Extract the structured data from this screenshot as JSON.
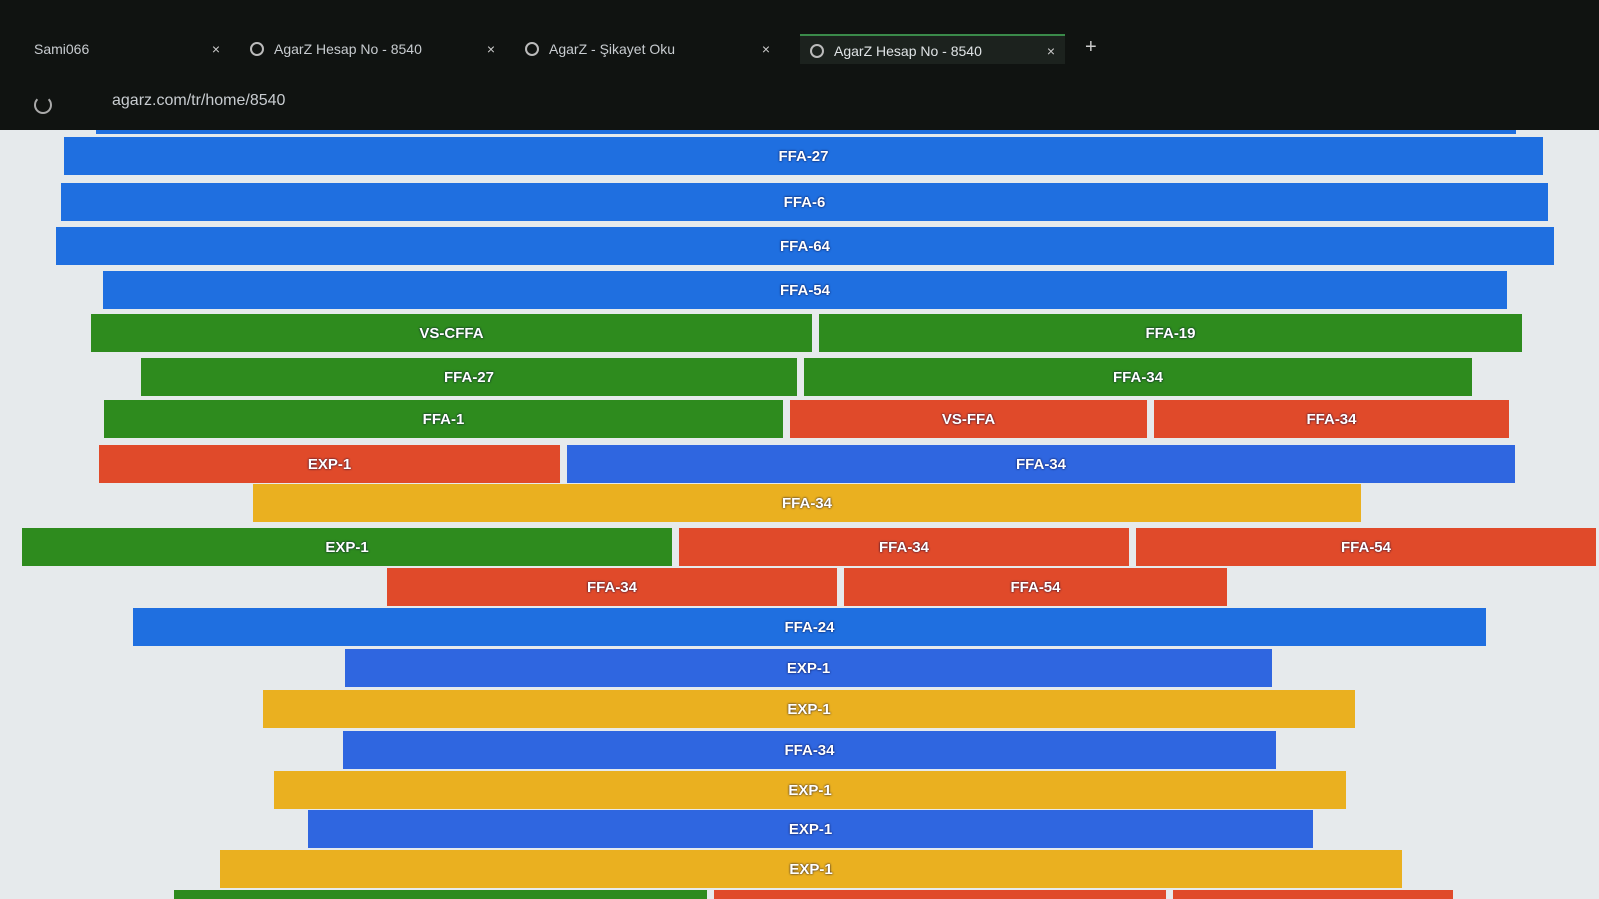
{
  "tabs": [
    {
      "title": "Sami066"
    },
    {
      "title": "AgarZ Hesap No - 8540"
    },
    {
      "title": "AgarZ - Şikayet Oku"
    },
    {
      "title": "AgarZ Hesap No - 8540"
    }
  ],
  "address": "agarz.com/tr/home/8540",
  "rows": [
    {
      "segments": [
        {
          "label": "FFA-27",
          "color": "#1f6fe0"
        }
      ]
    },
    {
      "segments": [
        {
          "label": "FFA-6",
          "color": "#1f6fe0"
        }
      ]
    },
    {
      "segments": [
        {
          "label": "FFA-64",
          "color": "#1f6fe0"
        }
      ]
    },
    {
      "segments": [
        {
          "label": "FFA-54",
          "color": "#1f6fe0"
        }
      ]
    },
    {
      "segments": [
        {
          "label": "VS-CFFA",
          "color": "#2e8b1e"
        },
        {
          "label": "FFA-19",
          "color": "#2e8b1e"
        }
      ]
    },
    {
      "segments": [
        {
          "label": "FFA-27",
          "color": "#2e8b1e"
        },
        {
          "label": "FFA-34",
          "color": "#2e8b1e"
        }
      ]
    },
    {
      "segments": [
        {
          "label": "FFA-1",
          "color": "#2e8b1e"
        },
        {
          "label": "VS-FFA",
          "color": "#e04a2a"
        },
        {
          "label": "FFA-34",
          "color": "#e04a2a"
        }
      ]
    },
    {
      "segments": [
        {
          "label": "EXP-1",
          "color": "#e04a2a"
        },
        {
          "label": "FFA-34",
          "color": "#2f66e0"
        }
      ]
    },
    {
      "segments": [
        {
          "label": "FFA-34",
          "color": "#eab020"
        }
      ]
    },
    {
      "segments": [
        {
          "label": "EXP-1",
          "color": "#2e8b1e"
        },
        {
          "label": "FFA-34",
          "color": "#e04a2a"
        },
        {
          "label": "FFA-54",
          "color": "#e04a2a"
        }
      ]
    },
    {
      "segments": [
        {
          "label": "FFA-34",
          "color": "#e04a2a"
        },
        {
          "label": "FFA-54",
          "color": "#e04a2a"
        }
      ]
    },
    {
      "segments": [
        {
          "label": "FFA-24",
          "color": "#1f6fe0"
        }
      ]
    },
    {
      "segments": [
        {
          "label": "EXP-1",
          "color": "#2f66e0"
        }
      ]
    },
    {
      "segments": [
        {
          "label": "EXP-1",
          "color": "#eab020"
        }
      ]
    },
    {
      "segments": [
        {
          "label": "FFA-34",
          "color": "#2f66e0"
        }
      ]
    },
    {
      "segments": [
        {
          "label": "EXP-1",
          "color": "#eab020"
        }
      ]
    },
    {
      "segments": [
        {
          "label": "EXP-1",
          "color": "#2f66e0"
        }
      ]
    },
    {
      "segments": [
        {
          "label": "EXP-1",
          "color": "#eab020"
        }
      ]
    }
  ]
}
